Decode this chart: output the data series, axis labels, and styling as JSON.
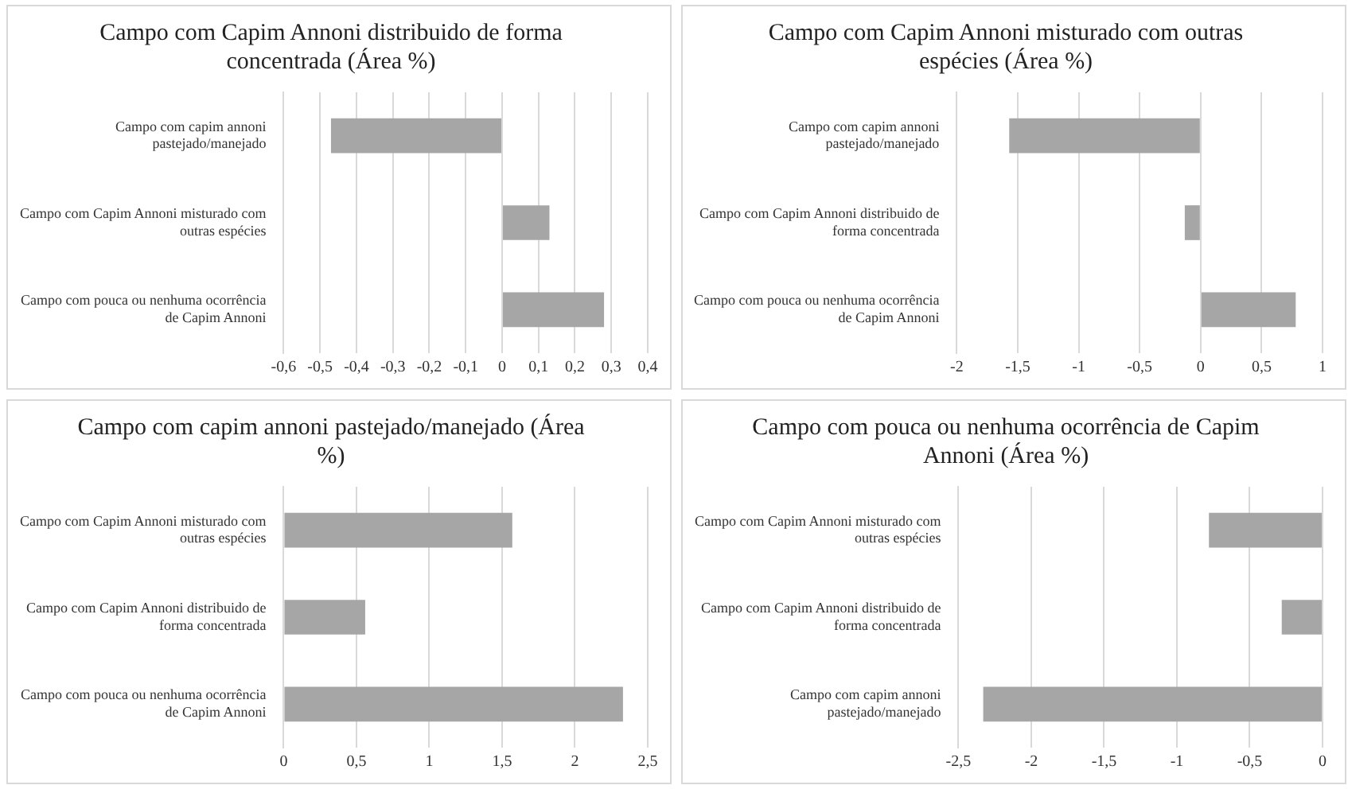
{
  "chart_data": [
    {
      "type": "bar",
      "orientation": "horizontal",
      "title": "Campo com Capim Annoni distribuido de forma concentrada (Área %)",
      "categories": [
        "Campo com capim annoni pastejado/manejado",
        "Campo com Capim Annoni misturado com outras espécies",
        "Campo com pouca ou nenhuma ocorrência de Capim Annoni"
      ],
      "values": [
        -0.47,
        0.13,
        0.28
      ],
      "color": "#a6a6a6",
      "xlim": [
        -0.6,
        0.4
      ],
      "xticks": [
        {
          "value": -0.6,
          "label": "-0,6"
        },
        {
          "value": -0.5,
          "label": "-0,5"
        },
        {
          "value": -0.4,
          "label": "-0,4"
        },
        {
          "value": -0.3,
          "label": "-0,3"
        },
        {
          "value": -0.2,
          "label": "-0,2"
        },
        {
          "value": -0.1,
          "label": "-0,1"
        },
        0,
        {
          "value": 0.1,
          "label": "0,1"
        },
        {
          "value": 0.2,
          "label": "0,2"
        },
        {
          "value": 0.3,
          "label": "0,3"
        },
        {
          "value": 0.4,
          "label": "0,4"
        }
      ],
      "grid": "x"
    },
    {
      "type": "bar",
      "orientation": "horizontal",
      "title": "Campo com Capim Annoni misturado com outras espécies (Área %)",
      "categories": [
        "Campo com capim annoni pastejado/manejado",
        "Campo com Capim Annoni distribuido de forma concentrada",
        "Campo com pouca ou nenhuma ocorrência de Capim Annoni"
      ],
      "values": [
        -1.57,
        -0.13,
        0.78
      ],
      "color": "#a6a6a6",
      "xlim": [
        -2,
        1
      ],
      "xticks": [
        -2,
        {
          "value": -1.5,
          "label": "-1,5"
        },
        -1,
        {
          "value": -0.5,
          "label": "-0,5"
        },
        0,
        {
          "value": 0.5,
          "label": "0,5"
        },
        1
      ],
      "grid": "x"
    },
    {
      "type": "bar",
      "orientation": "horizontal",
      "title": "Campo com capim annoni pastejado/manejado (Área %)",
      "categories": [
        "Campo com Capim Annoni misturado com outras espécies",
        "Campo com Capim Annoni distribuido de forma concentrada",
        "Campo com pouca ou nenhuma ocorrência de Capim Annoni"
      ],
      "values": [
        1.57,
        0.56,
        2.33
      ],
      "color": "#a6a6a6",
      "xlim": [
        0,
        2.5
      ],
      "xticks": [
        0,
        {
          "value": 0.5,
          "label": "0,5"
        },
        1,
        {
          "value": 1.5,
          "label": "1,5"
        },
        2,
        {
          "value": 2.5,
          "label": "2,5"
        }
      ],
      "grid": "x"
    },
    {
      "type": "bar",
      "orientation": "horizontal",
      "title": "Campo com pouca ou nenhuma ocorrência de Capim Annoni (Área %)",
      "categories": [
        "Campo com Capim Annoni misturado com outras espécies",
        "Campo com Capim Annoni distribuido de forma concentrada",
        "Campo com capim annoni pastejado/manejado"
      ],
      "values": [
        -0.78,
        -0.28,
        -2.33
      ],
      "color": "#a6a6a6",
      "xlim": [
        -2.5,
        0
      ],
      "xticks": [
        {
          "value": -2.5,
          "label": "-2,5"
        },
        -2,
        {
          "value": -1.5,
          "label": "-1,5"
        },
        -1,
        {
          "value": -0.5,
          "label": "-0,5"
        },
        0
      ],
      "grid": "x"
    }
  ]
}
